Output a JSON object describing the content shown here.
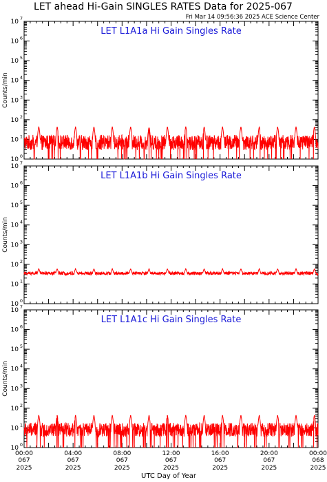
{
  "header": {
    "title": "LET ahead Hi-Gain SINGLES RATES Data for 2025-067",
    "timestamp": "Fri Mar 14 09:56:36 2025 ACE Science Center"
  },
  "colors": {
    "series": "#ff0000",
    "panel_title": "#1a1ad8",
    "axes": "#000000"
  },
  "chart_data": [
    {
      "type": "line",
      "title": "LET L1A1a Hi Gain Singles Rate",
      "ylabel": "Counts/min",
      "yscale": "log",
      "ylim": [
        1,
        10000000
      ],
      "xlim_hours": [
        0,
        24
      ],
      "baseline": 7,
      "noise": 0.55,
      "dip_prob": 0.05,
      "spike_peak": 45,
      "spike_period_hours": 1.5,
      "spike_start_hours": 1.2,
      "series_color": "#ff0000"
    },
    {
      "type": "line",
      "title": "LET L1A1b Hi Gain Singles Rate",
      "ylabel": "Counts/min",
      "yscale": "log",
      "ylim": [
        1,
        10000000
      ],
      "xlim_hours": [
        0,
        24
      ],
      "baseline": 35,
      "noise": 0.12,
      "dip_prob": 0.0,
      "spike_peak": 60,
      "spike_period_hours": 1.5,
      "spike_start_hours": 1.2,
      "series_color": "#ff0000"
    },
    {
      "type": "line",
      "title": "LET L1A1c Hi Gain Singles Rate",
      "ylabel": "Counts/min",
      "yscale": "log",
      "ylim": [
        1,
        10000000
      ],
      "xlim_hours": [
        0,
        24
      ],
      "baseline": 8,
      "noise": 0.5,
      "dip_prob": 0.05,
      "spike_peak": 45,
      "spike_period_hours": 1.5,
      "spike_start_hours": 1.2,
      "series_color": "#ff0000"
    }
  ],
  "x_axis": {
    "label": "UTC Day of Year",
    "ticks": [
      {
        "time": "00:00",
        "day": "067",
        "year": "2025"
      },
      {
        "time": "04:00",
        "day": "067",
        "year": "2025"
      },
      {
        "time": "08:00",
        "day": "067",
        "year": "2025"
      },
      {
        "time": "12:00",
        "day": "067",
        "year": "2025"
      },
      {
        "time": "16:00",
        "day": "067",
        "year": "2025"
      },
      {
        "time": "20:00",
        "day": "067",
        "year": "2025"
      },
      {
        "time": "00:00",
        "day": "068",
        "year": "2025"
      }
    ]
  }
}
